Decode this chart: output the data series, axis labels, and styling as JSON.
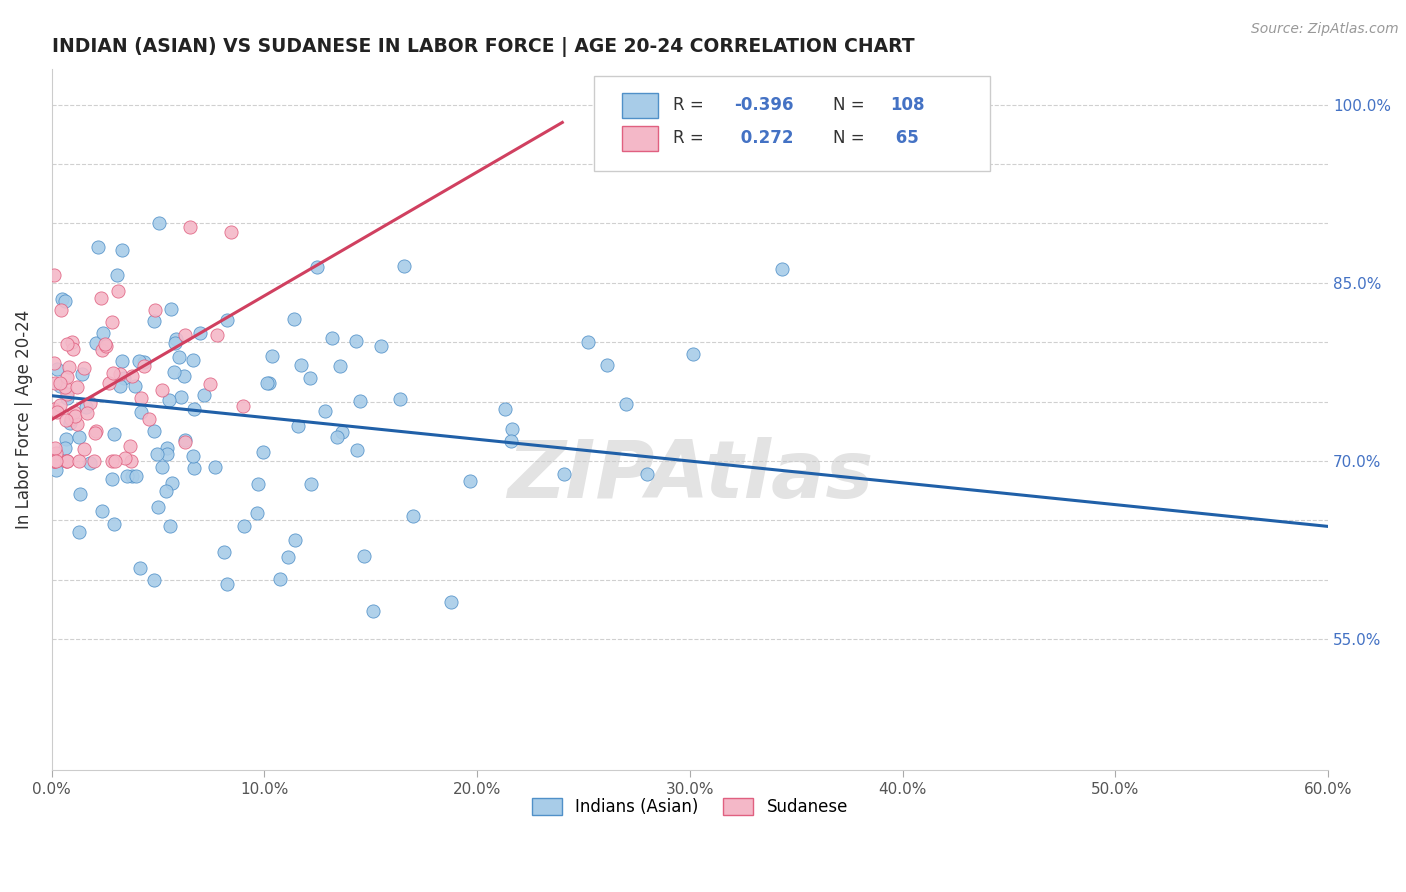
{
  "title": "INDIAN (ASIAN) VS SUDANESE IN LABOR FORCE | AGE 20-24 CORRELATION CHART",
  "source": "Source: ZipAtlas.com",
  "ylabel": "In Labor Force | Age 20-24",
  "xlim": [
    0.0,
    0.6
  ],
  "ylim": [
    0.44,
    1.03
  ],
  "xticks": [
    0.0,
    0.1,
    0.2,
    0.3,
    0.4,
    0.5,
    0.6
  ],
  "xticklabels": [
    "0.0%",
    "10.0%",
    "20.0%",
    "30.0%",
    "40.0%",
    "50.0%",
    "60.0%"
  ],
  "yticks": [
    0.55,
    0.6,
    0.65,
    0.7,
    0.75,
    0.8,
    0.85,
    0.9,
    0.95,
    1.0
  ],
  "yticklabels": [
    "55.0%",
    "",
    "",
    "70.0%",
    "",
    "",
    "85.0%",
    "",
    "",
    "100.0%"
  ],
  "blue_R": -0.396,
  "blue_N": 108,
  "pink_R": 0.272,
  "pink_N": 65,
  "blue_color": "#a8cce8",
  "pink_color": "#f4b8c8",
  "blue_edge_color": "#5090c8",
  "pink_edge_color": "#e06080",
  "blue_line_color": "#2060a8",
  "pink_line_color": "#d04060",
  "watermark": "ZIPAtlas",
  "legend_label_blue": "Indians (Asian)",
  "legend_label_pink": "Sudanese",
  "blue_line_x0": 0.0,
  "blue_line_x1": 0.6,
  "blue_line_y0": 0.755,
  "blue_line_y1": 0.645,
  "pink_line_x0": 0.0,
  "pink_line_x1": 0.24,
  "pink_line_y0": 0.735,
  "pink_line_y1": 0.985
}
